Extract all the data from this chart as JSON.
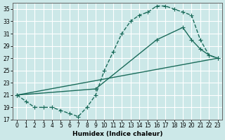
{
  "xlabel": "Humidex (Indice chaleur)",
  "bg_color": "#cce8e8",
  "grid_color": "#ffffff",
  "line_color": "#1a6b5a",
  "xlim": [
    -0.5,
    23.5
  ],
  "ylim": [
    17,
    36
  ],
  "yticks": [
    17,
    19,
    21,
    23,
    25,
    27,
    29,
    31,
    33,
    35
  ],
  "xticks": [
    0,
    1,
    2,
    3,
    4,
    5,
    6,
    7,
    8,
    9,
    10,
    11,
    12,
    13,
    14,
    15,
    16,
    17,
    18,
    19,
    20,
    21,
    22,
    23
  ],
  "curve1_x": [
    0,
    1,
    2,
    3,
    4,
    5,
    6,
    7,
    8,
    9,
    10,
    11,
    12,
    13,
    14,
    15,
    16,
    17,
    18,
    19,
    20,
    21,
    22,
    23
  ],
  "curve1_y": [
    21,
    20,
    19,
    19,
    19,
    18.5,
    18,
    17.5,
    19,
    21,
    25,
    28,
    31,
    33,
    34,
    34.5,
    35.5,
    35.5,
    35,
    34.5,
    34,
    30,
    27.5,
    27
  ],
  "curve2_x": [
    0,
    9,
    16,
    19,
    20,
    21,
    22,
    23
  ],
  "curve2_y": [
    21,
    22,
    30,
    32,
    30,
    28.5,
    27.5,
    27
  ],
  "line3_x": [
    0,
    23
  ],
  "line3_y": [
    21,
    27
  ]
}
